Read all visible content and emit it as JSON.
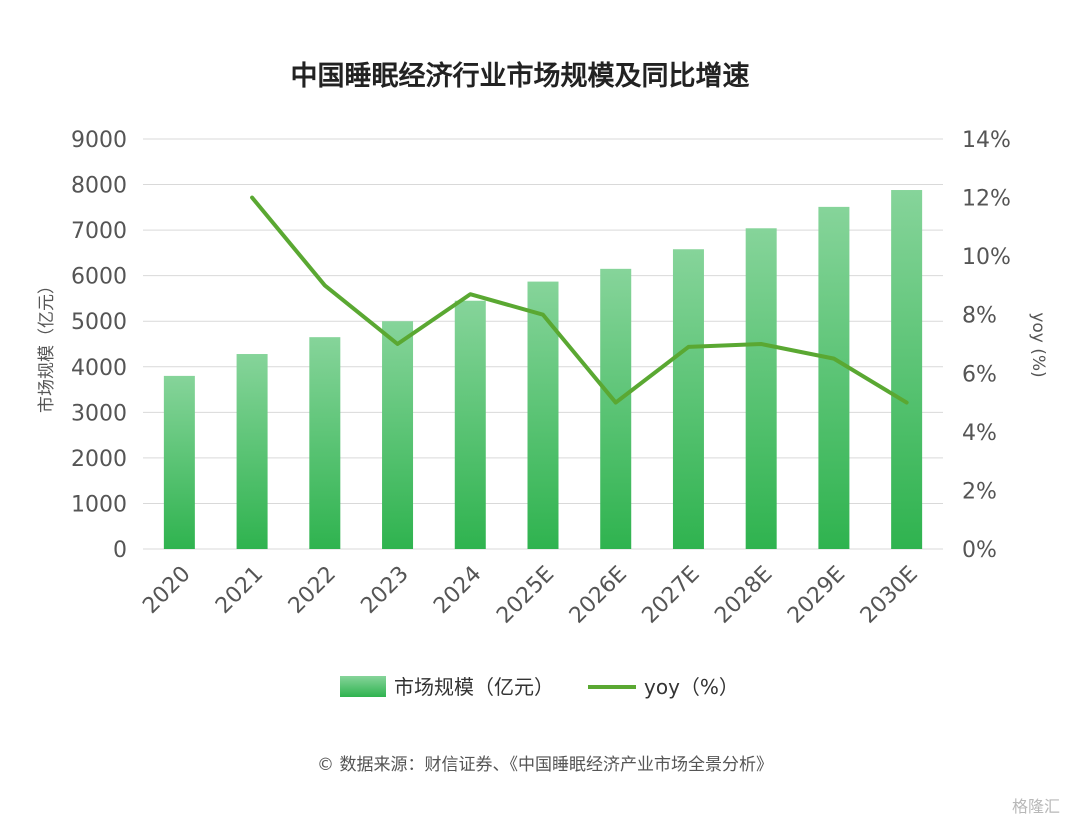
{
  "chart_data": {
    "type": "bar",
    "title": "中国睡眠经济行业市场规模及同比增速",
    "categories": [
      "2020",
      "2021",
      "2022",
      "2023",
      "2024",
      "2025E",
      "2026E",
      "2027E",
      "2028E",
      "2029E",
      "2030E"
    ],
    "series": [
      {
        "name": "市场规模（亿元）",
        "type": "bar",
        "axis": "left",
        "values": [
          3800,
          4280,
          4650,
          5000,
          5450,
          5870,
          6150,
          6580,
          7040,
          7510,
          7880
        ]
      },
      {
        "name": "yoy（%）",
        "type": "line",
        "axis": "right",
        "values": [
          null,
          12.0,
          9.0,
          7.0,
          8.7,
          8.0,
          5.0,
          6.9,
          7.0,
          6.5,
          5.0
        ]
      }
    ],
    "ylabel": "市场规模（亿元）",
    "y2label": "yoy (%)",
    "ylim": [
      0,
      9000
    ],
    "y2lim": [
      0,
      14
    ],
    "yticks": [
      "0",
      "1000",
      "2000",
      "3000",
      "4000",
      "5000",
      "6000",
      "7000",
      "8000",
      "9000"
    ],
    "y2ticks": [
      "0%",
      "2%",
      "4%",
      "6%",
      "8%",
      "10%",
      "12%",
      "14%"
    ],
    "grid": true,
    "legend": "bottom",
    "colors": {
      "bar_top": "#86d49a",
      "bar_bottom": "#2fb34f",
      "line": "#5aa832"
    }
  },
  "source": "© 数据来源：财信证券、《中国睡眠经济产业市场全景分析》",
  "watermark": "格隆汇"
}
